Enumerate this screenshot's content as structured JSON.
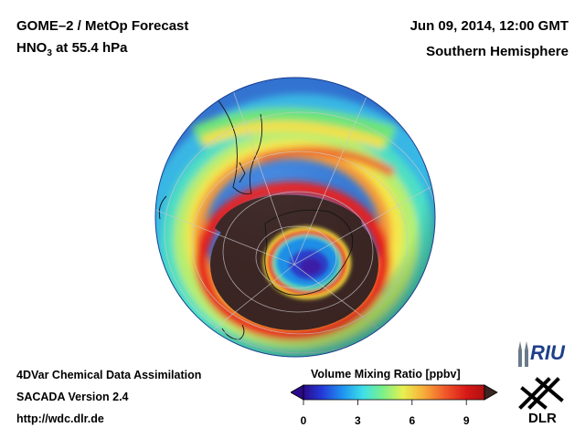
{
  "header": {
    "title_line1": "GOME–2 / MetOp Forecast",
    "species_main": "HNO",
    "species_sub": "3",
    "species_rest": " at 55.4 hPa",
    "datetime": "Jun 09, 2014, 12:00 GMT",
    "region": "Southern Hemisphere"
  },
  "footer": {
    "line1": "4DVar Chemical Data Assimilation",
    "line2": "SACADA Version 2.4",
    "line3": "http://wdc.dlr.de"
  },
  "colorbar": {
    "title": "Volume Mixing Ratio [ppbv]",
    "ticks": [
      "0",
      "3",
      "6",
      "9"
    ],
    "min": 0,
    "max": 10
  },
  "logos": {
    "riu_text": "RIU",
    "dlr_text": "DLR"
  },
  "colors": {
    "vortex_core": "#3a2523",
    "ocean_bg": "#2f6fd0"
  }
}
